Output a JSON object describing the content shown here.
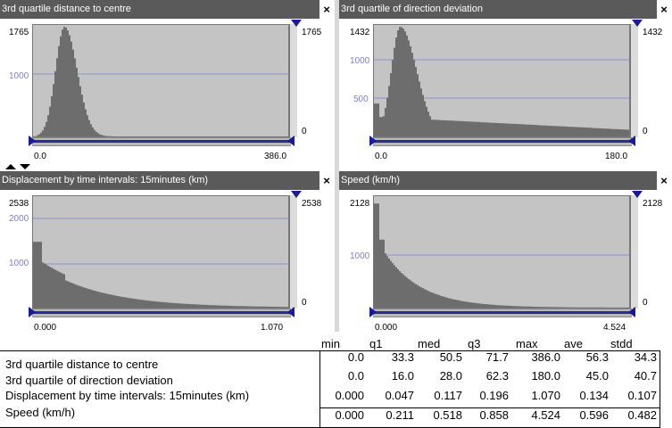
{
  "panels": [
    {
      "id": "p1",
      "title": "3rd quartile distance to centre",
      "y_max_label": "1765",
      "y_mid_label": "1000",
      "right_top_label": "1765",
      "right_bottom_label": "0",
      "x_min_label": "0.0",
      "x_max_label": "386.0"
    },
    {
      "id": "p2",
      "title": "3rd quartile of direction deviation",
      "y_max_label": "1432",
      "y_mid_label": "1000",
      "y_low_label": "500",
      "right_top_label": "1432",
      "right_bottom_label": "0",
      "x_min_label": "0.0",
      "x_max_label": "180.0"
    },
    {
      "id": "p3",
      "title": "Displacement by time intervals: 15minutes (km)",
      "y_max_label": "2538",
      "y_mid_label": "2000",
      "y_low_label": "1000",
      "right_top_label": "2538",
      "right_bottom_label": "0",
      "x_min_label": "0.000",
      "x_max_label": "1.070"
    },
    {
      "id": "p4",
      "title": "Speed (km/h)",
      "y_max_label": "2128",
      "y_mid_label": "1000",
      "right_top_label": "2128",
      "right_bottom_label": "0",
      "x_min_label": "0.000",
      "x_max_label": "4.524"
    }
  ],
  "close_symbol": "×",
  "stats": {
    "headers": [
      "min",
      "q1",
      "med",
      "q3",
      "max",
      "ave",
      "stdd"
    ],
    "rows": [
      {
        "label": "3rd quartile distance to centre",
        "values": [
          "0.0",
          "33.3",
          "50.5",
          "71.7",
          "386.0",
          "56.3",
          "34.3"
        ]
      },
      {
        "label": "3rd quartile of direction deviation",
        "values": [
          "0.0",
          "16.0",
          "28.0",
          "62.3",
          "180.0",
          "45.0",
          "40.7"
        ]
      },
      {
        "label": "Displacement by time intervals: 15minutes (km)",
        "values": [
          "0.000",
          "0.047",
          "0.117",
          "0.196",
          "1.070",
          "0.134",
          "0.107"
        ]
      },
      {
        "label": "Speed (km/h)",
        "values": [
          "0.000",
          "0.211",
          "0.518",
          "0.858",
          "4.524",
          "0.596",
          "0.482"
        ]
      }
    ]
  },
  "colors": {
    "histogram": "#6d6d6d",
    "plot_background": "#c4c4c4",
    "gridline": "#8b8fd6",
    "slider_bar": "#2b2b9a",
    "handle": "#1a1aa0",
    "titlebar": "#5a5a5a"
  }
}
